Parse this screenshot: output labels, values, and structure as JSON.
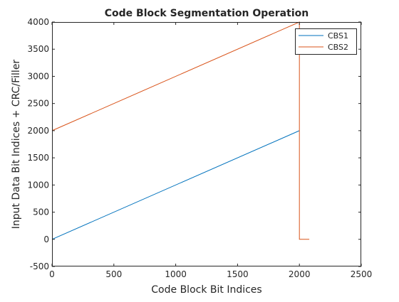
{
  "chart_data": {
    "type": "line",
    "title": "Code Block Segmentation Operation",
    "xlabel": "Code Block Bit Indices",
    "ylabel": "Input Data Bit Indices + CRC/Filler",
    "xlim": [
      0,
      2500
    ],
    "ylim": [
      -500,
      4000
    ],
    "xticks": [
      0,
      500,
      1000,
      1500,
      2000,
      2500
    ],
    "yticks": [
      -500,
      0,
      500,
      1000,
      1500,
      2000,
      2500,
      3000,
      3500,
      4000
    ],
    "grid": false,
    "legend_position": "top-right",
    "series": [
      {
        "name": "CBS1",
        "color": "#0072BD",
        "x": [
          0,
          2000
        ],
        "y": [
          0,
          2000
        ]
      },
      {
        "name": "CBS2",
        "color": "#D95319",
        "x": [
          0,
          2000,
          2000,
          2080
        ],
        "y": [
          2000,
          4000,
          0,
          0
        ]
      }
    ]
  }
}
